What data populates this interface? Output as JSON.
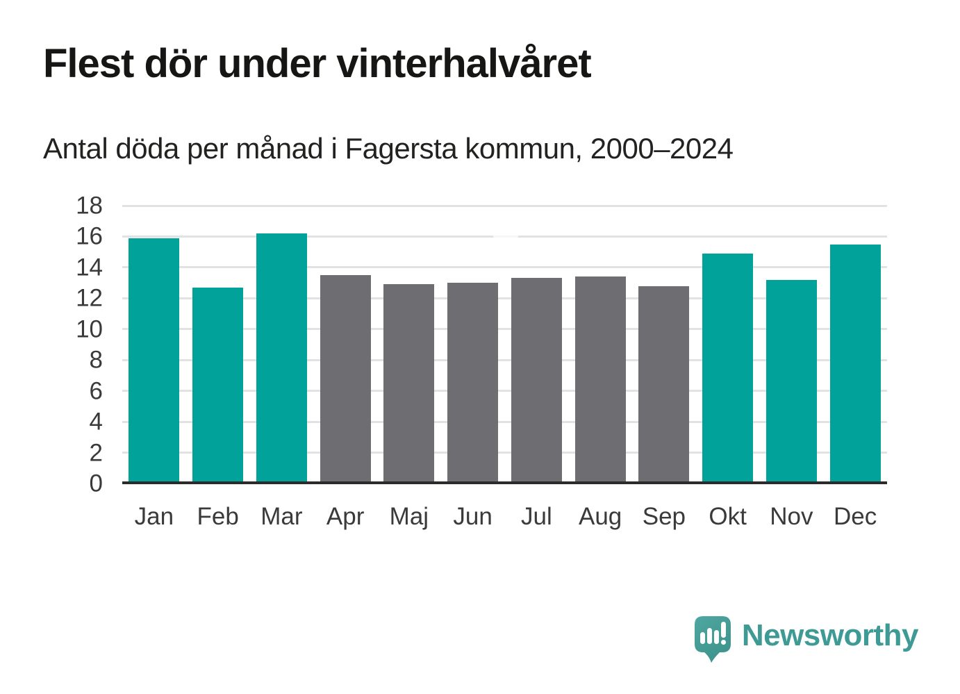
{
  "chart_data": {
    "type": "bar",
    "title": "Flest dör under vinterhalvåret",
    "subtitle": "Antal döda per månad i Fagersta kommun, 2000–2024",
    "categories": [
      "Jan",
      "Feb",
      "Mar",
      "Apr",
      "Maj",
      "Jun",
      "Jul",
      "Aug",
      "Sep",
      "Okt",
      "Nov",
      "Dec"
    ],
    "values": [
      15.9,
      12.7,
      16.2,
      13.5,
      12.9,
      13.0,
      13.3,
      13.4,
      12.8,
      14.9,
      13.2,
      15.5
    ],
    "highlighted": [
      true,
      true,
      true,
      false,
      false,
      false,
      false,
      false,
      false,
      true,
      true,
      true
    ],
    "colors": {
      "highlight": "#00a299",
      "default": "#6d6d72",
      "gridline": "#e2e2e2",
      "axis_line": "#2b2b2b",
      "tick_text": "#3a3a3a"
    },
    "xlabel": "",
    "ylabel": "",
    "ylim": [
      0,
      18
    ],
    "ytick_step": 2,
    "grid": true,
    "legend": "none"
  },
  "branding": {
    "logo_text": "Newsworthy",
    "logo_color": "#3d9a94",
    "logo_icon": "speech-bubble-bar-chart-exclamation",
    "logo_icon_bg": "#47a19a",
    "logo_icon_glyph_color": "#ffffff"
  }
}
